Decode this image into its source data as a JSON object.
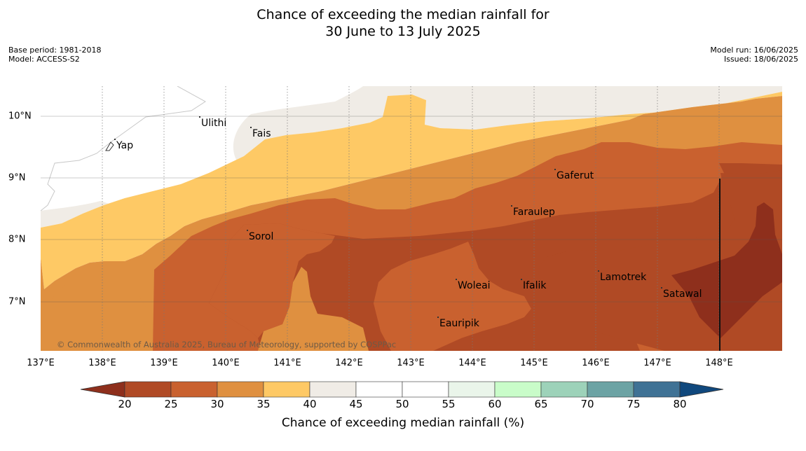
{
  "header": {
    "title_line1": "Chance of exceeding the median rainfall for",
    "title_line2": "30 June to 13 July 2025",
    "base_period": "Base period: 1981-2018",
    "model": "Model: ACCESS-S2",
    "model_run": "Model run: 16/06/2025",
    "issued": "Issued: 18/06/2025"
  },
  "map": {
    "lon_range": [
      137,
      149
    ],
    "lat_range": [
      6.2,
      10.5
    ],
    "copyright": "© Commonwealth of Australia 2025, Bureau of Meteorology, supported by COSPPac",
    "x_ticks": [
      "137°E",
      "138°E",
      "139°E",
      "140°E",
      "141°E",
      "142°E",
      "143°E",
      "144°E",
      "145°E",
      "146°E",
      "147°E",
      "148°E"
    ],
    "y_ticks": [
      "10°N",
      "9°N",
      "8°N",
      "7°N"
    ],
    "places": [
      {
        "name": "Yap",
        "lon": 138.1,
        "lat": 9.5
      },
      {
        "name": "Ulithi",
        "lon": 139.7,
        "lat": 9.9
      },
      {
        "name": "Fais",
        "lon": 140.4,
        "lat": 9.75
      },
      {
        "name": "Gaferut",
        "lon": 145.4,
        "lat": 9.05
      },
      {
        "name": "Faraulep",
        "lon": 144.65,
        "lat": 8.5
      },
      {
        "name": "Sorol",
        "lon": 140.4,
        "lat": 8.1
      },
      {
        "name": "Woleai",
        "lon": 143.8,
        "lat": 7.35
      },
      {
        "name": "Ifalik",
        "lon": 144.8,
        "lat": 7.35
      },
      {
        "name": "Lamotrek",
        "lon": 146.05,
        "lat": 7.5
      },
      {
        "name": "Satawal",
        "lon": 147.1,
        "lat": 7.15
      },
      {
        "name": "Eauripik",
        "lon": 143.5,
        "lat": 6.7
      }
    ]
  },
  "colorbar": {
    "label": "Chance of exceeding median rainfall (%)",
    "ticks": [
      "20",
      "25",
      "30",
      "35",
      "40",
      "45",
      "50",
      "55",
      "60",
      "65",
      "70",
      "75",
      "80"
    ],
    "bins": [
      {
        "range": "<20",
        "color": "#8e2f1c"
      },
      {
        "range": "20-25",
        "color": "#b04a25"
      },
      {
        "range": "25-30",
        "color": "#c9612f"
      },
      {
        "range": "30-35",
        "color": "#df9040"
      },
      {
        "range": "35-40",
        "color": "#fec965"
      },
      {
        "range": "40-45",
        "color": "#f0ece6"
      },
      {
        "range": "45-50",
        "color": "#ffffff"
      },
      {
        "range": "50-55",
        "color": "#ffffff"
      },
      {
        "range": "55-60",
        "color": "#eaf5ea"
      },
      {
        "range": "60-65",
        "color": "#c9fcc9"
      },
      {
        "range": "65-70",
        "color": "#9dd2b9"
      },
      {
        "range": "70-75",
        "color": "#6ca3a4"
      },
      {
        "range": "75-80",
        "color": "#3f7295"
      },
      {
        "range": ">80",
        "color": "#10487d"
      }
    ]
  }
}
